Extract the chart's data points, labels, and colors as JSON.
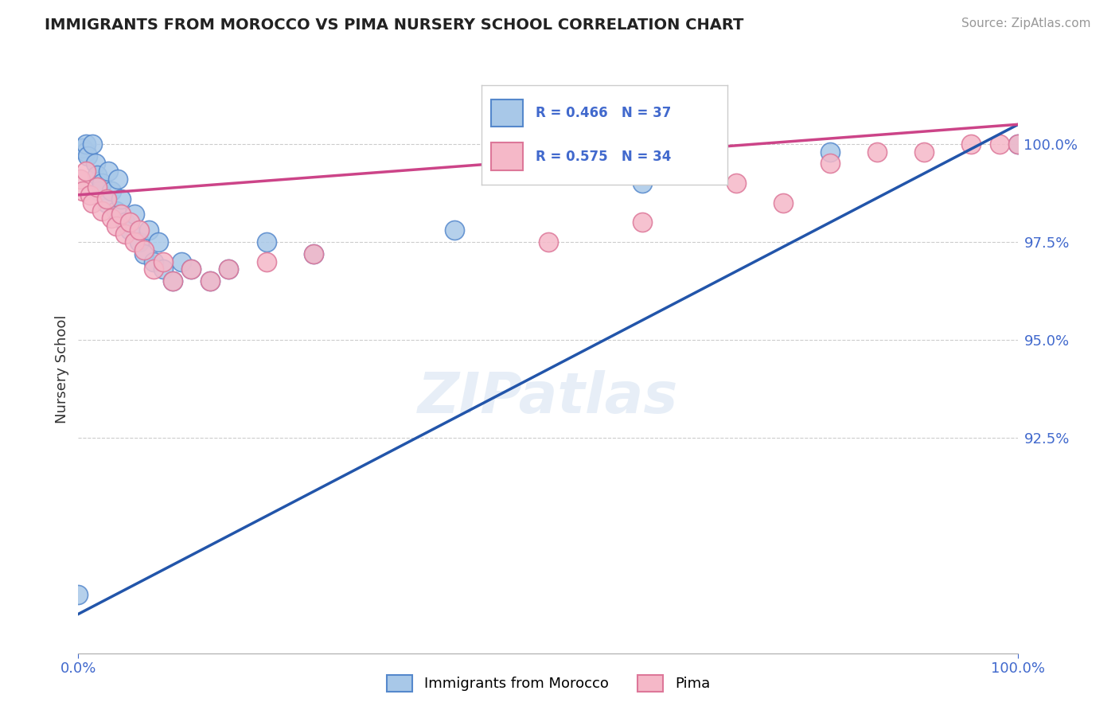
{
  "title": "IMMIGRANTS FROM MOROCCO VS PIMA NURSERY SCHOOL CORRELATION CHART",
  "source": "Source: ZipAtlas.com",
  "ylabel": "Nursery School",
  "y_tick_values": [
    92.5,
    95.0,
    97.5,
    100.0
  ],
  "legend_label1": "Immigrants from Morocco",
  "legend_label2": "Pima",
  "r1": 0.466,
  "n1": 37,
  "r2": 0.575,
  "n2": 34,
  "color_blue": "#a8c8e8",
  "color_blue_edge": "#5588cc",
  "color_blue_line": "#2255aa",
  "color_pink": "#f5b8c8",
  "color_pink_edge": "#dd7799",
  "color_pink_line": "#cc4488",
  "color_axis_val": "#4169CD",
  "background_color": "#ffffff",
  "blue_points_x": [
    0.0,
    0.3,
    0.5,
    0.8,
    0.8,
    1.0,
    1.5,
    1.8,
    2.0,
    2.2,
    2.5,
    3.0,
    3.2,
    3.5,
    4.0,
    4.2,
    4.5,
    5.0,
    5.5,
    6.0,
    6.5,
    7.0,
    7.5,
    8.0,
    8.5,
    9.0,
    10.0,
    11.0,
    12.0,
    14.0,
    16.0,
    20.0,
    25.0,
    40.0,
    60.0,
    80.0,
    100.0
  ],
  "blue_points_y": [
    88.5,
    99.9,
    99.9,
    99.8,
    100.0,
    99.7,
    100.0,
    99.5,
    99.2,
    98.8,
    99.0,
    98.5,
    99.3,
    98.8,
    98.3,
    99.1,
    98.6,
    98.0,
    97.8,
    98.2,
    97.5,
    97.2,
    97.8,
    97.0,
    97.5,
    96.8,
    96.5,
    97.0,
    96.8,
    96.5,
    96.8,
    97.5,
    97.2,
    97.8,
    99.0,
    99.8,
    100.0
  ],
  "pink_points_x": [
    0.2,
    0.5,
    0.8,
    1.2,
    1.5,
    2.0,
    2.5,
    3.0,
    3.5,
    4.0,
    4.5,
    5.0,
    5.5,
    6.0,
    6.5,
    7.0,
    8.0,
    9.0,
    10.0,
    12.0,
    14.0,
    16.0,
    20.0,
    25.0,
    50.0,
    60.0,
    70.0,
    75.0,
    80.0,
    85.0,
    90.0,
    95.0,
    98.0,
    100.0
  ],
  "pink_points_y": [
    99.1,
    98.8,
    99.3,
    98.7,
    98.5,
    98.9,
    98.3,
    98.6,
    98.1,
    97.9,
    98.2,
    97.7,
    98.0,
    97.5,
    97.8,
    97.3,
    96.8,
    97.0,
    96.5,
    96.8,
    96.5,
    96.8,
    97.0,
    97.2,
    97.5,
    98.0,
    99.0,
    98.5,
    99.5,
    99.8,
    99.8,
    100.0,
    100.0,
    100.0
  ],
  "ylim_min": 87.0,
  "ylim_max": 101.5,
  "xlim_min": 0,
  "xlim_max": 100
}
